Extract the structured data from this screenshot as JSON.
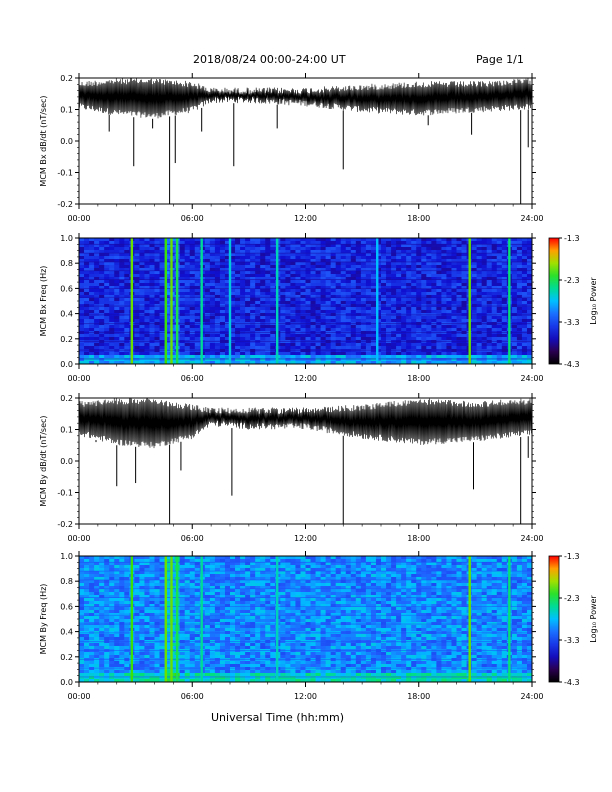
{
  "header": {
    "title": "2018/08/24  00:00-24:00 UT",
    "page": "Page 1/1"
  },
  "xaxis": {
    "label": "Universal Time (hh:mm)",
    "ticks": [
      "00:00",
      "06:00",
      "12:00",
      "18:00",
      "24:00"
    ]
  },
  "colorbar": {
    "label": "Log₁₀ Power",
    "ticks": [
      "-1.3",
      "-2.3",
      "-3.3",
      "-4.3"
    ],
    "range": [
      -4.3,
      -1.3
    ]
  },
  "chart_data": [
    {
      "type": "line",
      "ylabel": "MCM Bx dB/dt (nT/sec)",
      "ylim": [
        -0.2,
        0.2
      ],
      "yticks": [
        "0.2",
        "0.1",
        "0.0",
        "-0.1",
        "-0.2"
      ],
      "xlim_hours": [
        0,
        24
      ],
      "baseline_band": [
        {
          "x": 0,
          "low": 0.1,
          "high": 0.19
        },
        {
          "x": 2,
          "low": 0.08,
          "high": 0.2
        },
        {
          "x": 4,
          "low": 0.07,
          "high": 0.2
        },
        {
          "x": 6,
          "low": 0.09,
          "high": 0.19
        },
        {
          "x": 7,
          "low": 0.12,
          "high": 0.17
        },
        {
          "x": 9,
          "low": 0.12,
          "high": 0.17
        },
        {
          "x": 12,
          "low": 0.11,
          "high": 0.17
        },
        {
          "x": 15,
          "low": 0.09,
          "high": 0.18
        },
        {
          "x": 18,
          "low": 0.08,
          "high": 0.19
        },
        {
          "x": 21,
          "low": 0.09,
          "high": 0.19
        },
        {
          "x": 24,
          "low": 0.1,
          "high": 0.2
        }
      ],
      "spikes": [
        {
          "x": 1.6,
          "y": 0.03
        },
        {
          "x": 2.9,
          "y": -0.08
        },
        {
          "x": 3.9,
          "y": 0.04
        },
        {
          "x": 4.8,
          "y": -0.2
        },
        {
          "x": 5.1,
          "y": -0.07
        },
        {
          "x": 6.5,
          "y": 0.03
        },
        {
          "x": 8.2,
          "y": -0.08
        },
        {
          "x": 10.5,
          "y": 0.04
        },
        {
          "x": 14.0,
          "y": -0.09
        },
        {
          "x": 18.5,
          "y": 0.05
        },
        {
          "x": 20.8,
          "y": 0.02
        },
        {
          "x": 23.4,
          "y": -0.2
        },
        {
          "x": 23.8,
          "y": -0.02
        }
      ]
    },
    {
      "type": "heatmap",
      "ylabel": "MCM Bx Freq (Hz)",
      "ylim": [
        0,
        1.0
      ],
      "yticks": [
        "1.0",
        "0.8",
        "0.6",
        "0.4",
        "0.2",
        "0.0"
      ],
      "xlim_hours": [
        0,
        24
      ],
      "zlim": [
        -4.3,
        -1.3
      ],
      "background_level": -3.5,
      "low_freq_level": -2.9,
      "bright_columns": [
        {
          "x": 2.8,
          "level": -2.0
        },
        {
          "x": 4.6,
          "level": -2.1
        },
        {
          "x": 4.9,
          "level": -2.0
        },
        {
          "x": 5.2,
          "level": -2.3
        },
        {
          "x": 6.5,
          "level": -2.5
        },
        {
          "x": 8.0,
          "level": -2.7
        },
        {
          "x": 10.5,
          "level": -2.6
        },
        {
          "x": 15.8,
          "level": -2.8
        },
        {
          "x": 20.7,
          "level": -2.0
        },
        {
          "x": 22.8,
          "level": -2.4
        }
      ]
    },
    {
      "type": "line",
      "ylabel": "MCM By dB/dt (nT/sec)",
      "ylim": [
        -0.2,
        0.2
      ],
      "yticks": [
        "0.2",
        "0.1",
        "0.0",
        "-0.1",
        "-0.2"
      ],
      "xlim_hours": [
        0,
        24
      ],
      "baseline_band": [
        {
          "x": 0,
          "low": 0.08,
          "high": 0.19
        },
        {
          "x": 2,
          "low": 0.05,
          "high": 0.2
        },
        {
          "x": 4,
          "low": 0.04,
          "high": 0.2
        },
        {
          "x": 6,
          "low": 0.07,
          "high": 0.18
        },
        {
          "x": 7,
          "low": 0.11,
          "high": 0.17
        },
        {
          "x": 9,
          "low": 0.1,
          "high": 0.17
        },
        {
          "x": 12,
          "low": 0.1,
          "high": 0.17
        },
        {
          "x": 15,
          "low": 0.07,
          "high": 0.18
        },
        {
          "x": 18,
          "low": 0.05,
          "high": 0.2
        },
        {
          "x": 21,
          "low": 0.06,
          "high": 0.19
        },
        {
          "x": 24,
          "low": 0.08,
          "high": 0.2
        }
      ],
      "spikes": [
        {
          "x": 0.9,
          "y": 0.06
        },
        {
          "x": 2.0,
          "y": -0.08
        },
        {
          "x": 3.0,
          "y": -0.07
        },
        {
          "x": 4.8,
          "y": -0.2
        },
        {
          "x": 5.4,
          "y": -0.03
        },
        {
          "x": 8.1,
          "y": -0.11
        },
        {
          "x": 14.0,
          "y": -0.2
        },
        {
          "x": 20.9,
          "y": -0.09
        },
        {
          "x": 23.4,
          "y": -0.2
        },
        {
          "x": 23.8,
          "y": 0.01
        }
      ]
    },
    {
      "type": "heatmap",
      "ylabel": "MCM By Freq (Hz)",
      "ylim": [
        0,
        1.0
      ],
      "yticks": [
        "1.0",
        "0.8",
        "0.6",
        "0.4",
        "0.2",
        "0.0"
      ],
      "xlim_hours": [
        0,
        24
      ],
      "zlim": [
        -4.3,
        -1.3
      ],
      "background_level": -3.0,
      "low_freq_level": -2.6,
      "bright_columns": [
        {
          "x": 2.8,
          "level": -2.1
        },
        {
          "x": 4.6,
          "level": -2.0
        },
        {
          "x": 4.9,
          "level": -2.0
        },
        {
          "x": 5.2,
          "level": -2.3
        },
        {
          "x": 6.5,
          "level": -2.5
        },
        {
          "x": 10.5,
          "level": -2.6
        },
        {
          "x": 20.7,
          "level": -2.0
        },
        {
          "x": 22.8,
          "level": -2.4
        }
      ]
    }
  ]
}
